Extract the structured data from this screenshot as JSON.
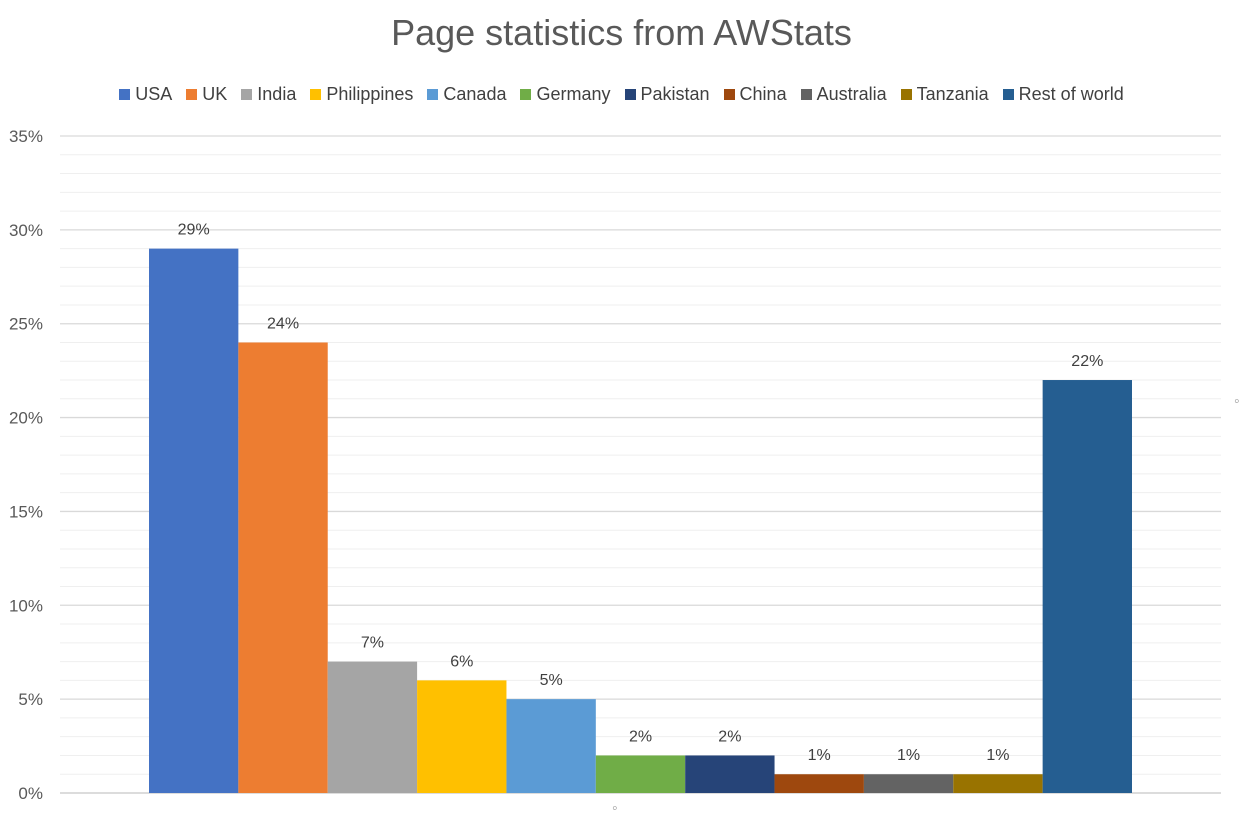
{
  "chart_data": {
    "type": "bar",
    "title": "Page statistics from AWStats",
    "xlabel": "",
    "ylabel": "",
    "ylim": [
      0,
      35
    ],
    "ytick_labels": [
      "0%",
      "5%",
      "10%",
      "15%",
      "20%",
      "25%",
      "30%",
      "35%"
    ],
    "grid": true,
    "legend_position": "top",
    "series": [
      {
        "name": "USA",
        "value": 29,
        "label": "29%",
        "color": "#4472C4"
      },
      {
        "name": "UK",
        "value": 24,
        "label": "24%",
        "color": "#ED7D31"
      },
      {
        "name": "India",
        "value": 7,
        "label": "7%",
        "color": "#A5A5A5"
      },
      {
        "name": "Philippines",
        "value": 6,
        "label": "6%",
        "color": "#FFC000"
      },
      {
        "name": "Canada",
        "value": 5,
        "label": "5%",
        "color": "#5B9BD5"
      },
      {
        "name": "Germany",
        "value": 2,
        "label": "2%",
        "color": "#70AD47"
      },
      {
        "name": "Pakistan",
        "value": 2,
        "label": "2%",
        "color": "#264478"
      },
      {
        "name": "China",
        "value": 1,
        "label": "1%",
        "color": "#9E480E"
      },
      {
        "name": "Australia",
        "value": 1,
        "label": "1%",
        "color": "#636363"
      },
      {
        "name": "Tanzania",
        "value": 1,
        "label": "1%",
        "color": "#997300"
      },
      {
        "name": "Rest of world",
        "value": 22,
        "label": "22%",
        "color": "#255E91"
      }
    ]
  }
}
